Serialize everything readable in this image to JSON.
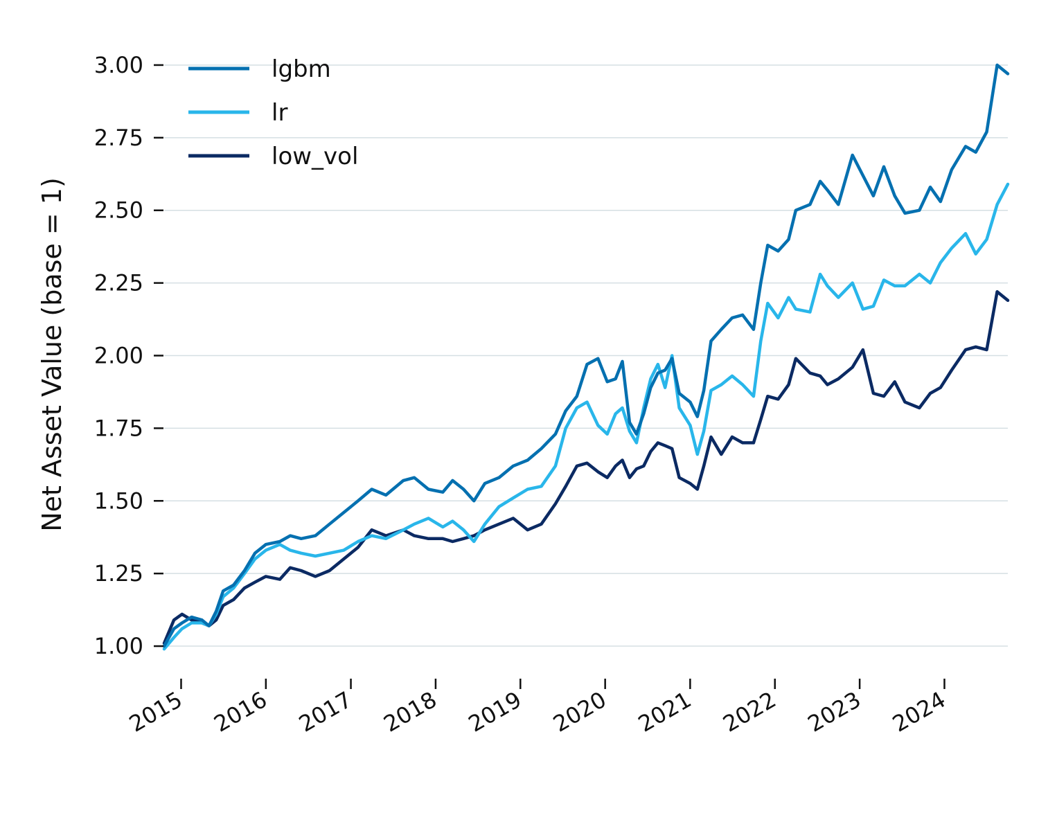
{
  "chart_data": {
    "type": "line",
    "title": "",
    "xlabel": "",
    "ylabel": "Net Asset Value (base = 1)",
    "xlim": [
      "2014-10-20",
      "2024-09-30"
    ],
    "ylim": [
      0.9,
      3.1
    ],
    "yticks": [
      "1.00",
      "1.25",
      "1.50",
      "1.75",
      "2.00",
      "2.25",
      "2.50",
      "2.75",
      "3.00"
    ],
    "xticks": [
      "2015",
      "2016",
      "2017",
      "2018",
      "2019",
      "2020",
      "2021",
      "2022",
      "2023",
      "2024"
    ],
    "grid": "horizontal",
    "legend": "top-left",
    "series": [
      {
        "name": "lgbm",
        "color": "#0570b0",
        "points": [
          [
            "2014-10-20",
            1.0
          ],
          [
            "2014-12-01",
            1.06
          ],
          [
            "2015-01-05",
            1.08
          ],
          [
            "2015-02-15",
            1.1
          ],
          [
            "2015-04-01",
            1.09
          ],
          [
            "2015-05-01",
            1.07
          ],
          [
            "2015-06-01",
            1.12
          ],
          [
            "2015-07-01",
            1.19
          ],
          [
            "2015-08-15",
            1.21
          ],
          [
            "2015-10-01",
            1.26
          ],
          [
            "2015-11-15",
            1.32
          ],
          [
            "2016-01-01",
            1.35
          ],
          [
            "2016-03-01",
            1.36
          ],
          [
            "2016-04-15",
            1.38
          ],
          [
            "2016-06-01",
            1.37
          ],
          [
            "2016-08-01",
            1.38
          ],
          [
            "2016-10-01",
            1.42
          ],
          [
            "2016-12-01",
            1.46
          ],
          [
            "2017-02-01",
            1.5
          ],
          [
            "2017-04-01",
            1.54
          ],
          [
            "2017-06-01",
            1.52
          ],
          [
            "2017-08-15",
            1.57
          ],
          [
            "2017-10-01",
            1.58
          ],
          [
            "2017-12-01",
            1.54
          ],
          [
            "2018-02-01",
            1.53
          ],
          [
            "2018-03-15",
            1.57
          ],
          [
            "2018-05-01",
            1.54
          ],
          [
            "2018-06-15",
            1.5
          ],
          [
            "2018-08-01",
            1.56
          ],
          [
            "2018-10-01",
            1.58
          ],
          [
            "2018-12-01",
            1.62
          ],
          [
            "2019-02-01",
            1.64
          ],
          [
            "2019-04-01",
            1.68
          ],
          [
            "2019-06-01",
            1.73
          ],
          [
            "2019-07-15",
            1.81
          ],
          [
            "2019-09-01",
            1.86
          ],
          [
            "2019-10-15",
            1.97
          ],
          [
            "2019-12-01",
            1.99
          ],
          [
            "2020-01-10",
            1.91
          ],
          [
            "2020-02-15",
            1.92
          ],
          [
            "2020-03-15",
            1.98
          ],
          [
            "2020-04-15",
            1.77
          ],
          [
            "2020-05-15",
            1.73
          ],
          [
            "2020-06-15",
            1.8
          ],
          [
            "2020-07-15",
            1.89
          ],
          [
            "2020-08-15",
            1.94
          ],
          [
            "2020-09-15",
            1.95
          ],
          [
            "2020-10-15",
            1.99
          ],
          [
            "2020-11-15",
            1.87
          ],
          [
            "2021-01-01",
            1.84
          ],
          [
            "2021-02-01",
            1.79
          ],
          [
            "2021-03-01",
            1.88
          ],
          [
            "2021-04-01",
            2.05
          ],
          [
            "2021-05-15",
            2.09
          ],
          [
            "2021-07-01",
            2.13
          ],
          [
            "2021-08-15",
            2.14
          ],
          [
            "2021-10-01",
            2.09
          ],
          [
            "2021-11-01",
            2.25
          ],
          [
            "2021-12-01",
            2.38
          ],
          [
            "2022-01-15",
            2.36
          ],
          [
            "2022-03-01",
            2.4
          ],
          [
            "2022-04-01",
            2.5
          ],
          [
            "2022-06-01",
            2.52
          ],
          [
            "2022-07-15",
            2.6
          ],
          [
            "2022-08-15",
            2.57
          ],
          [
            "2022-10-01",
            2.52
          ],
          [
            "2022-12-01",
            2.69
          ],
          [
            "2023-01-15",
            2.62
          ],
          [
            "2023-03-01",
            2.55
          ],
          [
            "2023-04-15",
            2.65
          ],
          [
            "2023-06-01",
            2.55
          ],
          [
            "2023-07-15",
            2.49
          ],
          [
            "2023-09-15",
            2.5
          ],
          [
            "2023-11-01",
            2.58
          ],
          [
            "2023-12-15",
            2.53
          ],
          [
            "2024-02-01",
            2.64
          ],
          [
            "2024-04-01",
            2.72
          ],
          [
            "2024-05-15",
            2.7
          ],
          [
            "2024-07-01",
            2.77
          ],
          [
            "2024-08-15",
            3.0
          ],
          [
            "2024-09-30",
            2.97
          ]
        ]
      },
      {
        "name": "lr",
        "color": "#29b6ea",
        "points": [
          [
            "2014-10-20",
            0.99
          ],
          [
            "2014-12-01",
            1.03
          ],
          [
            "2015-01-05",
            1.06
          ],
          [
            "2015-02-15",
            1.08
          ],
          [
            "2015-04-01",
            1.08
          ],
          [
            "2015-05-01",
            1.07
          ],
          [
            "2015-06-01",
            1.11
          ],
          [
            "2015-07-01",
            1.17
          ],
          [
            "2015-08-15",
            1.2
          ],
          [
            "2015-10-01",
            1.25
          ],
          [
            "2015-11-15",
            1.3
          ],
          [
            "2016-01-01",
            1.33
          ],
          [
            "2016-03-01",
            1.35
          ],
          [
            "2016-04-15",
            1.33
          ],
          [
            "2016-06-01",
            1.32
          ],
          [
            "2016-08-01",
            1.31
          ],
          [
            "2016-10-01",
            1.32
          ],
          [
            "2016-12-01",
            1.33
          ],
          [
            "2017-02-01",
            1.36
          ],
          [
            "2017-04-01",
            1.38
          ],
          [
            "2017-06-01",
            1.37
          ],
          [
            "2017-08-15",
            1.4
          ],
          [
            "2017-10-01",
            1.42
          ],
          [
            "2017-12-01",
            1.44
          ],
          [
            "2018-02-01",
            1.41
          ],
          [
            "2018-03-15",
            1.43
          ],
          [
            "2018-05-01",
            1.4
          ],
          [
            "2018-06-15",
            1.36
          ],
          [
            "2018-08-01",
            1.42
          ],
          [
            "2018-10-01",
            1.48
          ],
          [
            "2018-12-01",
            1.51
          ],
          [
            "2019-02-01",
            1.54
          ],
          [
            "2019-04-01",
            1.55
          ],
          [
            "2019-06-01",
            1.62
          ],
          [
            "2019-07-15",
            1.75
          ],
          [
            "2019-09-01",
            1.82
          ],
          [
            "2019-10-15",
            1.84
          ],
          [
            "2019-12-01",
            1.76
          ],
          [
            "2020-01-10",
            1.73
          ],
          [
            "2020-02-15",
            1.8
          ],
          [
            "2020-03-15",
            1.82
          ],
          [
            "2020-04-15",
            1.74
          ],
          [
            "2020-05-15",
            1.7
          ],
          [
            "2020-06-15",
            1.82
          ],
          [
            "2020-07-15",
            1.92
          ],
          [
            "2020-08-15",
            1.97
          ],
          [
            "2020-09-15",
            1.89
          ],
          [
            "2020-10-15",
            2.0
          ],
          [
            "2020-11-15",
            1.82
          ],
          [
            "2021-01-01",
            1.76
          ],
          [
            "2021-02-01",
            1.66
          ],
          [
            "2021-03-01",
            1.74
          ],
          [
            "2021-04-01",
            1.88
          ],
          [
            "2021-05-15",
            1.9
          ],
          [
            "2021-07-01",
            1.93
          ],
          [
            "2021-08-15",
            1.9
          ],
          [
            "2021-10-01",
            1.86
          ],
          [
            "2021-11-01",
            2.05
          ],
          [
            "2021-12-01",
            2.18
          ],
          [
            "2022-01-15",
            2.13
          ],
          [
            "2022-03-01",
            2.2
          ],
          [
            "2022-04-01",
            2.16
          ],
          [
            "2022-06-01",
            2.15
          ],
          [
            "2022-07-15",
            2.28
          ],
          [
            "2022-08-15",
            2.24
          ],
          [
            "2022-10-01",
            2.2
          ],
          [
            "2022-12-01",
            2.25
          ],
          [
            "2023-01-15",
            2.16
          ],
          [
            "2023-03-01",
            2.17
          ],
          [
            "2023-04-15",
            2.26
          ],
          [
            "2023-06-01",
            2.24
          ],
          [
            "2023-07-15",
            2.24
          ],
          [
            "2023-09-15",
            2.28
          ],
          [
            "2023-11-01",
            2.25
          ],
          [
            "2023-12-15",
            2.32
          ],
          [
            "2024-02-01",
            2.37
          ],
          [
            "2024-04-01",
            2.42
          ],
          [
            "2024-05-15",
            2.35
          ],
          [
            "2024-07-01",
            2.4
          ],
          [
            "2024-08-15",
            2.52
          ],
          [
            "2024-09-30",
            2.59
          ]
        ]
      },
      {
        "name": "low_vol",
        "color": "#0b2a63",
        "points": [
          [
            "2014-10-20",
            1.01
          ],
          [
            "2014-12-01",
            1.09
          ],
          [
            "2015-01-05",
            1.11
          ],
          [
            "2015-02-15",
            1.09
          ],
          [
            "2015-04-01",
            1.08
          ],
          [
            "2015-05-01",
            1.07
          ],
          [
            "2015-06-01",
            1.09
          ],
          [
            "2015-07-01",
            1.14
          ],
          [
            "2015-08-15",
            1.16
          ],
          [
            "2015-10-01",
            1.2
          ],
          [
            "2015-11-15",
            1.22
          ],
          [
            "2016-01-01",
            1.24
          ],
          [
            "2016-03-01",
            1.23
          ],
          [
            "2016-04-15",
            1.27
          ],
          [
            "2016-06-01",
            1.26
          ],
          [
            "2016-08-01",
            1.24
          ],
          [
            "2016-10-01",
            1.26
          ],
          [
            "2016-12-01",
            1.3
          ],
          [
            "2017-02-01",
            1.34
          ],
          [
            "2017-04-01",
            1.4
          ],
          [
            "2017-06-01",
            1.38
          ],
          [
            "2017-08-15",
            1.4
          ],
          [
            "2017-10-01",
            1.38
          ],
          [
            "2017-12-01",
            1.37
          ],
          [
            "2018-02-01",
            1.37
          ],
          [
            "2018-03-15",
            1.36
          ],
          [
            "2018-05-01",
            1.37
          ],
          [
            "2018-06-15",
            1.38
          ],
          [
            "2018-08-01",
            1.4
          ],
          [
            "2018-10-01",
            1.42
          ],
          [
            "2018-12-01",
            1.44
          ],
          [
            "2019-02-01",
            1.4
          ],
          [
            "2019-04-01",
            1.42
          ],
          [
            "2019-06-01",
            1.49
          ],
          [
            "2019-07-15",
            1.55
          ],
          [
            "2019-09-01",
            1.62
          ],
          [
            "2019-10-15",
            1.63
          ],
          [
            "2019-12-01",
            1.6
          ],
          [
            "2020-01-10",
            1.58
          ],
          [
            "2020-02-15",
            1.62
          ],
          [
            "2020-03-15",
            1.64
          ],
          [
            "2020-04-15",
            1.58
          ],
          [
            "2020-05-15",
            1.61
          ],
          [
            "2020-06-15",
            1.62
          ],
          [
            "2020-07-15",
            1.67
          ],
          [
            "2020-08-15",
            1.7
          ],
          [
            "2020-09-15",
            1.69
          ],
          [
            "2020-10-15",
            1.68
          ],
          [
            "2020-11-15",
            1.58
          ],
          [
            "2021-01-01",
            1.56
          ],
          [
            "2021-02-01",
            1.54
          ],
          [
            "2021-03-01",
            1.62
          ],
          [
            "2021-04-01",
            1.72
          ],
          [
            "2021-05-15",
            1.66
          ],
          [
            "2021-07-01",
            1.72
          ],
          [
            "2021-08-15",
            1.7
          ],
          [
            "2021-10-01",
            1.7
          ],
          [
            "2021-11-01",
            1.78
          ],
          [
            "2021-12-01",
            1.86
          ],
          [
            "2022-01-15",
            1.85
          ],
          [
            "2022-03-01",
            1.9
          ],
          [
            "2022-04-01",
            1.99
          ],
          [
            "2022-06-01",
            1.94
          ],
          [
            "2022-07-15",
            1.93
          ],
          [
            "2022-08-15",
            1.9
          ],
          [
            "2022-10-01",
            1.92
          ],
          [
            "2022-12-01",
            1.96
          ],
          [
            "2023-01-15",
            2.02
          ],
          [
            "2023-03-01",
            1.87
          ],
          [
            "2023-04-15",
            1.86
          ],
          [
            "2023-06-01",
            1.91
          ],
          [
            "2023-07-15",
            1.84
          ],
          [
            "2023-09-15",
            1.82
          ],
          [
            "2023-11-01",
            1.87
          ],
          [
            "2023-12-15",
            1.89
          ],
          [
            "2024-02-01",
            1.95
          ],
          [
            "2024-04-01",
            2.02
          ],
          [
            "2024-05-15",
            2.03
          ],
          [
            "2024-07-01",
            2.02
          ],
          [
            "2024-08-15",
            2.22
          ],
          [
            "2024-09-30",
            2.19
          ]
        ]
      }
    ]
  }
}
